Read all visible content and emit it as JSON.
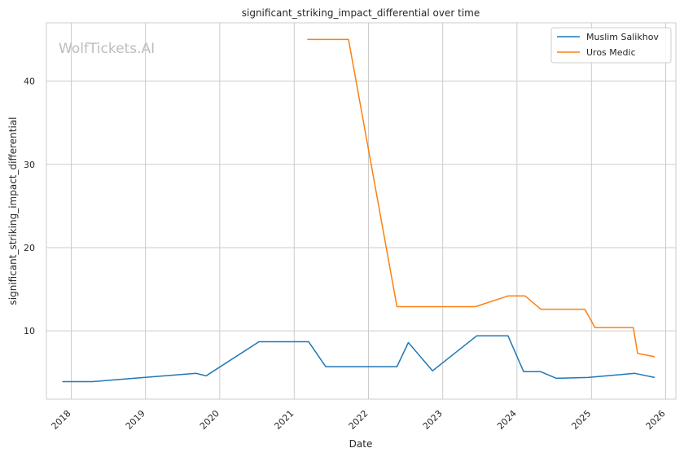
{
  "chart_data": {
    "type": "line",
    "title": "significant_striking_impact_differential over time",
    "xlabel": "Date",
    "ylabel": "significant_striking_impact_differential",
    "watermark": "WolfTickets.AI",
    "x_ticks": [
      "2018",
      "2019",
      "2020",
      "2021",
      "2022",
      "2023",
      "2024",
      "2025",
      "2026"
    ],
    "y_ticks": [
      10,
      20,
      30,
      40
    ],
    "xlim": [
      "2017-09-01",
      "2026-02-20"
    ],
    "ylim": [
      1.8,
      47.0
    ],
    "grid": true,
    "legend_position": "top-right",
    "series": [
      {
        "name": "Muslim Salikhov",
        "color": "#1f77b4",
        "points": [
          {
            "x": "2017-11-18",
            "y": 3.9
          },
          {
            "x": "2018-04-14",
            "y": 3.9
          },
          {
            "x": "2019-09-07",
            "y": 4.9
          },
          {
            "x": "2019-10-26",
            "y": 4.6
          },
          {
            "x": "2020-07-12",
            "y": 8.7
          },
          {
            "x": "2021-03-13",
            "y": 8.7
          },
          {
            "x": "2021-06-05",
            "y": 5.7
          },
          {
            "x": "2022-05-21",
            "y": 5.7
          },
          {
            "x": "2022-07-16",
            "y": 8.6
          },
          {
            "x": "2022-11-12",
            "y": 5.2
          },
          {
            "x": "2023-06-17",
            "y": 9.4
          },
          {
            "x": "2023-11-18",
            "y": 9.4
          },
          {
            "x": "2024-02-03",
            "y": 5.1
          },
          {
            "x": "2024-04-27",
            "y": 5.1
          },
          {
            "x": "2024-07-13",
            "y": 4.3
          },
          {
            "x": "2024-12-14",
            "y": 4.4
          },
          {
            "x": "2025-08-02",
            "y": 4.9
          },
          {
            "x": "2025-11-08",
            "y": 4.4
          }
        ]
      },
      {
        "name": "Uros Medic",
        "color": "#ff7f0e",
        "points": [
          {
            "x": "2021-03-06",
            "y": 45.0
          },
          {
            "x": "2021-09-25",
            "y": 45.0
          },
          {
            "x": "2022-05-21",
            "y": 12.9
          },
          {
            "x": "2023-06-10",
            "y": 12.9
          },
          {
            "x": "2023-11-18",
            "y": 14.2
          },
          {
            "x": "2024-02-10",
            "y": 14.2
          },
          {
            "x": "2024-04-27",
            "y": 12.6
          },
          {
            "x": "2024-11-30",
            "y": 12.6
          },
          {
            "x": "2025-01-18",
            "y": 10.4
          },
          {
            "x": "2025-07-26",
            "y": 10.4
          },
          {
            "x": "2025-08-16",
            "y": 7.3
          },
          {
            "x": "2025-11-08",
            "y": 6.9
          }
        ]
      }
    ]
  }
}
